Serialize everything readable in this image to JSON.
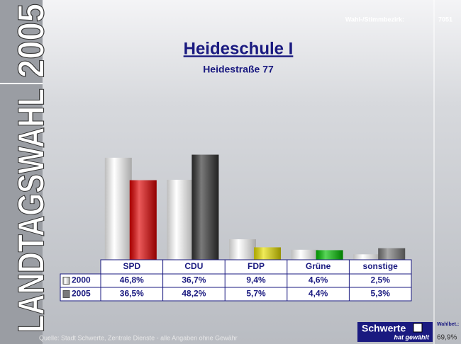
{
  "sidebar": "LANDTAGSWAHL",
  "sidebar_year": "2005",
  "district_label": "Wahl-/Stimmbezirk:",
  "district": "7051",
  "chart_data": {
    "type": "bar",
    "title": "Heideschule I",
    "subtitle": "Heidestraße 77",
    "categories": [
      "SPD",
      "CDU",
      "FDP",
      "Grüne",
      "sonstige"
    ],
    "series": [
      {
        "name": "2000",
        "color": "#e6e6e6",
        "values": [
          46.8,
          36.7,
          9.4,
          4.6,
          2.5
        ],
        "value_labels": [
          "46,8%",
          "36,7%",
          "9,4%",
          "4,6%",
          "2,5%"
        ]
      },
      {
        "name": "2005",
        "color": "#7a7a7a",
        "colors": [
          "#e00000",
          "#333333",
          "#e8e000",
          "#00c000",
          "#7a7a7a"
        ],
        "values": [
          36.5,
          48.2,
          5.7,
          4.4,
          5.3
        ],
        "value_labels": [
          "36,5%",
          "48,2%",
          "5,7%",
          "4,4%",
          "5,3%"
        ]
      }
    ]
  },
  "footer": {
    "source": "Quelle: Stadt Schwerte, Zentrale Dienste - alle Angaben ohne Gewähr",
    "brand": "Schwerte",
    "tagline": "hat gewählt",
    "turnout_label": "Wahlbet.:",
    "turnout": "69,9%"
  }
}
